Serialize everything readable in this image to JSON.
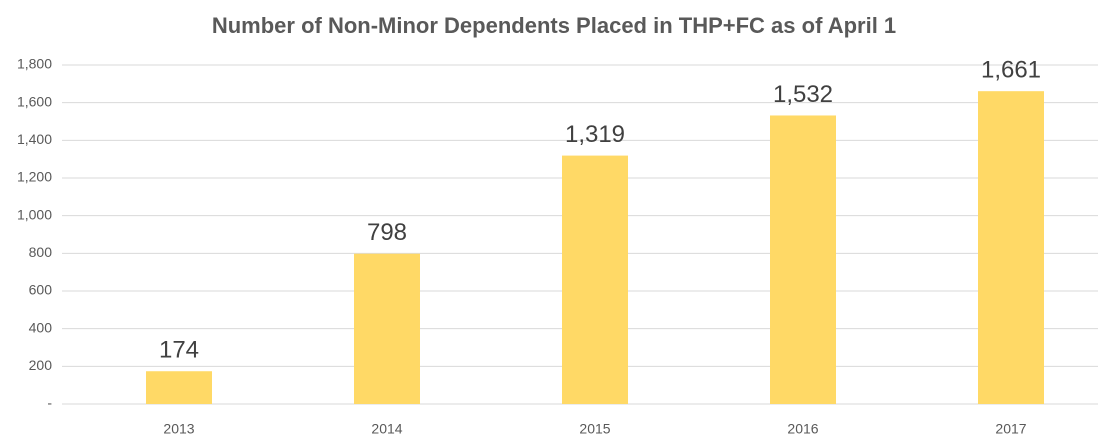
{
  "chart_data": {
    "type": "bar",
    "title": "Number of Non-Minor Dependents Placed in THP+FC as of April 1",
    "categories": [
      "2013",
      "2014",
      "2015",
      "2016",
      "2017"
    ],
    "values": [
      174,
      798,
      1319,
      1532,
      1661
    ],
    "value_labels": [
      "174",
      "798",
      "1,319",
      "1,532",
      "1,661"
    ],
    "color": "#ffd966",
    "ylim": [
      0,
      1800
    ],
    "yticks": [
      {
        "value": 0,
        "label": "-"
      },
      200,
      400,
      600,
      800,
      {
        "value": 1000,
        "label": "1,000"
      },
      {
        "value": 1200,
        "label": "1,200"
      },
      {
        "value": 1400,
        "label": "1,400"
      },
      {
        "value": 1600,
        "label": "1,600"
      },
      {
        "value": 1800,
        "label": "1,800"
      }
    ],
    "grid": true
  }
}
